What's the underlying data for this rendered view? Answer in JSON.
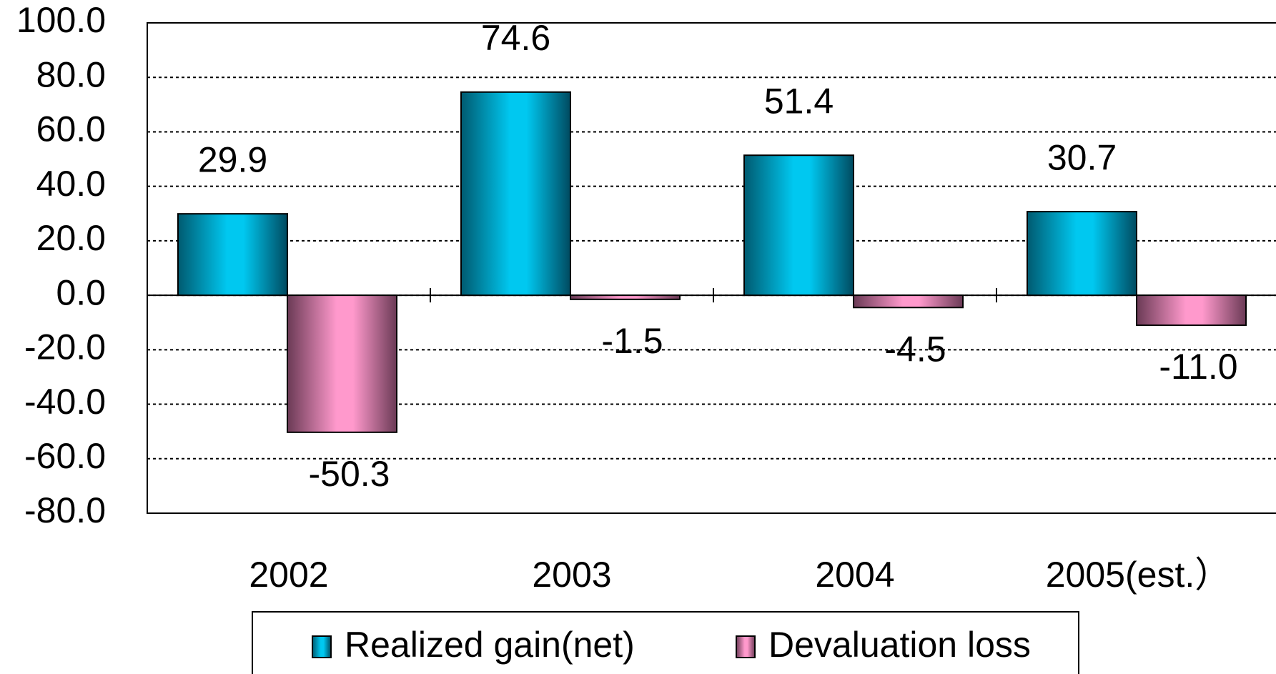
{
  "chart_data": {
    "type": "bar",
    "categories": [
      "2002",
      "2003",
      "2004",
      "2005(est.）"
    ],
    "series": [
      {
        "name": "Realized gain(net)",
        "color": "#00c8f0",
        "values": [
          29.9,
          74.6,
          51.4,
          30.7
        ]
      },
      {
        "name": "Devaluation loss",
        "color": "#ff99cc",
        "values": [
          -50.3,
          -1.5,
          -4.5,
          -11
        ],
        "value_labels": [
          "-50.3",
          "-1.5",
          "-4.5",
          "-11.0"
        ]
      }
    ],
    "ylim": [
      -80,
      100
    ],
    "yticks": [
      {
        "value": -80,
        "label": "-80.0"
      },
      {
        "value": -60,
        "label": "-60.0"
      },
      {
        "value": -40,
        "label": "-40.0"
      },
      {
        "value": -20,
        "label": "-20.0"
      },
      {
        "value": 0,
        "label": "0.0"
      },
      {
        "value": 20,
        "label": "20.0"
      },
      {
        "value": 40,
        "label": "40.0"
      },
      {
        "value": 60,
        "label": "60.0"
      },
      {
        "value": 80,
        "label": "80.0"
      },
      {
        "value": 100,
        "label": "100.0"
      }
    ],
    "grid": true,
    "legend": "bottom"
  }
}
